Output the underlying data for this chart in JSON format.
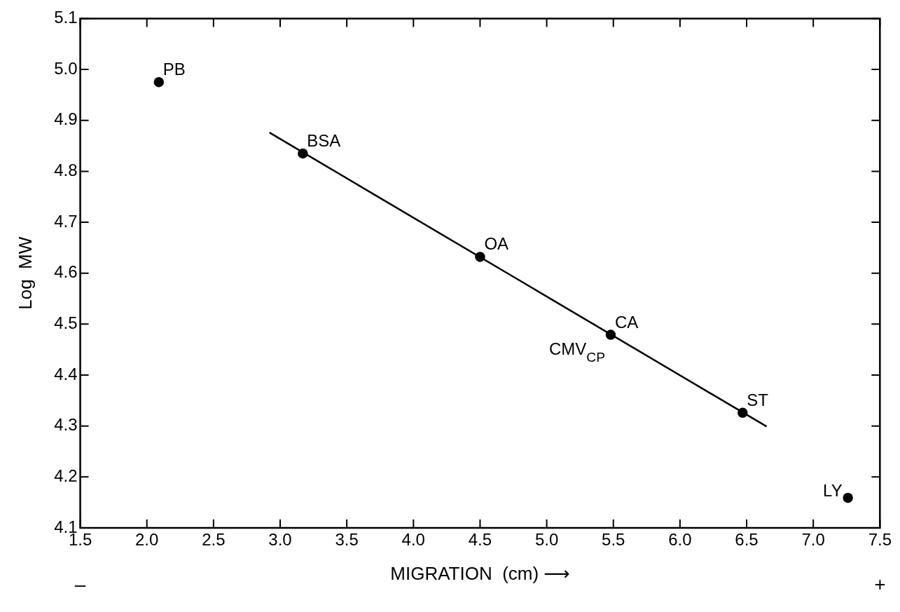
{
  "chart_data": {
    "type": "scatter",
    "xlabel": "MIGRATION  (cm) ⟶",
    "ylabel": "Log  MW",
    "xlim": [
      1.5,
      7.5
    ],
    "xticks": [
      1.5,
      {
        "value": 2,
        "label": "2.0"
      },
      2.5,
      {
        "value": 3,
        "label": "3.0"
      },
      3.5,
      {
        "value": 4,
        "label": "4.0"
      },
      4.5,
      {
        "value": 5,
        "label": "5.0"
      },
      5.5,
      {
        "value": 6,
        "label": "6.0"
      },
      6.5,
      {
        "value": 7,
        "label": "7.0"
      },
      7.5
    ],
    "ylim": [
      4.1,
      5.1
    ],
    "yticks": [
      4.1,
      4.2,
      4.3,
      4.4,
      4.5,
      4.6,
      4.7,
      4.8,
      4.9,
      {
        "value": 5,
        "label": "5.0"
      },
      5.1
    ],
    "grid": false,
    "legend": false,
    "marker": "circle",
    "series": [
      {
        "color": "#000000",
        "x": [
          2.09,
          3.17,
          4.5,
          5.48,
          6.47,
          7.26
        ],
        "values": [
          4.975,
          4.835,
          4.632,
          4.479,
          4.326,
          4.159
        ]
      },
      {
        "type": "line",
        "color": "#000000",
        "x": [
          2.92,
          6.65
        ],
        "values": [
          4.876,
          4.299
        ],
        "line_style": "solid",
        "marker": "none"
      }
    ],
    "annotations": [
      {
        "text": "PB",
        "x": 2.09,
        "y": 4.975
      },
      {
        "text": "BSA",
        "x": 3.17,
        "y": 4.835
      },
      {
        "text": "OA",
        "x": 4.5,
        "y": 4.632
      },
      {
        "text": "CA",
        "x": 5.48,
        "y": 4.479
      },
      {
        "text": "CMV$_{CP}$",
        "x": 5.48,
        "y": 4.479
      },
      {
        "text": "ST",
        "x": 6.47,
        "y": 4.326
      },
      {
        "text": "LY",
        "x": 7.26,
        "y": 4.159
      },
      "–",
      "+"
    ]
  }
}
